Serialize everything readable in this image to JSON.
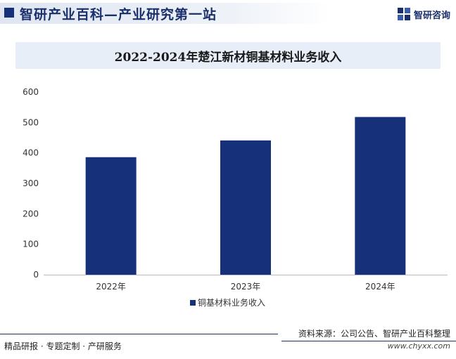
{
  "header": {
    "site_title": "智研产业百科—产业研究第一站",
    "brand_name": "智研咨询"
  },
  "footer": {
    "source": "资料来源：公司公告、智研产业百科整理",
    "services": "精品研报 · 专题定制 · 产研服务",
    "url": "www.chyxx.com"
  },
  "colors": {
    "bar": "#17307a",
    "title_band": "#e8eef8",
    "brand": "#1a2f6b"
  },
  "chart_data": {
    "type": "bar",
    "title": "2022-2024年楚江新材铜基材料业务收入",
    "categories": [
      "2022年",
      "2023年",
      "2024年"
    ],
    "series": [
      {
        "name": "铜基材料业务收入",
        "values": [
          386,
          441,
          518
        ]
      }
    ],
    "y_ticks": [
      0,
      100,
      200,
      300,
      400,
      500,
      600
    ],
    "ylim": [
      0,
      600
    ],
    "grid": false,
    "legend_position": "bottom-center"
  }
}
